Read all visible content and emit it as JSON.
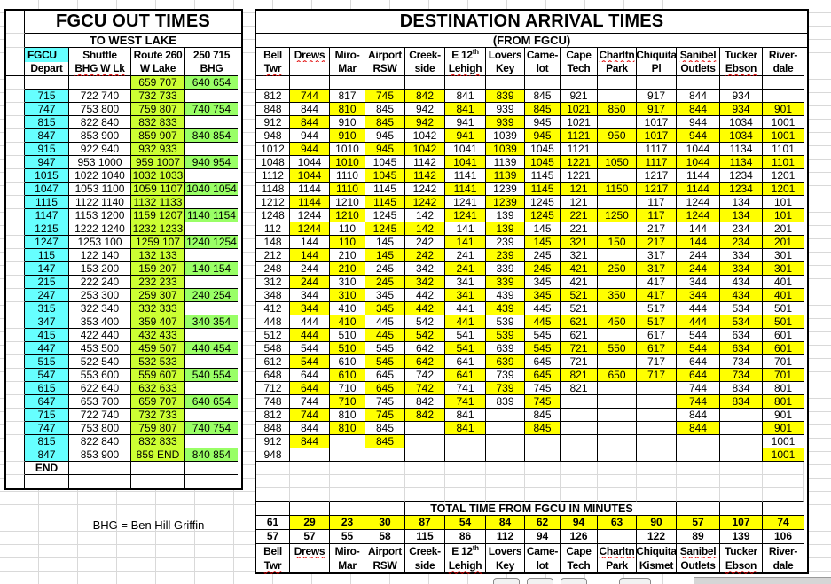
{
  "left_table": {
    "title": "FGCU OUT TIMES",
    "subtitle": "TO WEST LAKE",
    "headers": [
      {
        "line1": "FGCU",
        "line2": "Depart",
        "bg": "cyan"
      },
      {
        "line1": "Shuttle",
        "line2": "BHG W Lk",
        "sq2": true
      },
      {
        "line1": "Route 260",
        "line2": "W Lake"
      },
      {
        "line1": "250 715",
        "line2": "BHG"
      }
    ],
    "rows": [
      [
        "",
        "",
        "659 707",
        "640 654"
      ],
      [
        "715",
        "722 740",
        "732 733",
        ""
      ],
      [
        "747",
        "753 800",
        "759 807",
        "740 754"
      ],
      [
        "815",
        "822 840",
        "832 833",
        ""
      ],
      [
        "847",
        "853 900",
        "859 907",
        "840 854"
      ],
      [
        "915",
        "922 940",
        "932 933",
        ""
      ],
      [
        "947",
        "953 1000",
        "959 1007",
        "940 954"
      ],
      [
        "1015",
        "1022 1040",
        "1032 1033",
        ""
      ],
      [
        "1047",
        "1053 1100",
        "1059 1107",
        "1040 1054"
      ],
      [
        "1115",
        "1122 1140",
        "1132 1133",
        ""
      ],
      [
        "1147",
        "1153 1200",
        "1159 1207",
        "1140 1154"
      ],
      [
        "1215",
        "1222 1240",
        "1232 1233",
        ""
      ],
      [
        "1247",
        "1253 100",
        "1259 107",
        "1240 1254"
      ],
      [
        "115",
        "122 140",
        "132 133",
        ""
      ],
      [
        "147",
        "153 200",
        "159 207",
        "140 154"
      ],
      [
        "215",
        "222 240",
        "232 233",
        ""
      ],
      [
        "247",
        "253 300",
        "259 307",
        "240 254"
      ],
      [
        "315",
        "322 340",
        "332 333",
        ""
      ],
      [
        "347",
        "353 400",
        "359 407",
        "340 354"
      ],
      [
        "415",
        "422 440",
        "432 433",
        ""
      ],
      [
        "447",
        "453 500",
        "459 507",
        "440 454"
      ],
      [
        "515",
        "522 540",
        "532 533",
        ""
      ],
      [
        "547",
        "553 600",
        "559 607",
        "540 554"
      ],
      [
        "615",
        "622 640",
        "632 633",
        ""
      ],
      [
        "647",
        "653 700",
        "659 707",
        "640 654"
      ],
      [
        "715",
        "722 740",
        "732 733",
        ""
      ],
      [
        "747",
        "753 800",
        "759 807",
        "740 754"
      ],
      [
        "815",
        "822 840",
        "832 833",
        ""
      ],
      [
        "847",
        "853 900",
        "859 END",
        "840 854"
      ],
      [
        "END",
        "",
        "",
        ""
      ]
    ]
  },
  "right_table": {
    "title": "DESTINATION ARRIVAL TIMES",
    "subtitle": "(FROM FGCU)",
    "columns": [
      {
        "line1": "Bell",
        "line2": "Twr",
        "sq2": true
      },
      {
        "line1": "Drews",
        "line2": "",
        "sq1": true
      },
      {
        "line1": "Miro-",
        "line2": "Mar"
      },
      {
        "line1": "Airport",
        "line2": "RSW"
      },
      {
        "line1": "Creek-",
        "line2": "side"
      },
      {
        "line1": "E 12",
        "sup": "th",
        "line2": "Lehigh",
        "sq2": true
      },
      {
        "line1": "Lovers",
        "line2": "Key"
      },
      {
        "line1": "Came-",
        "line2": "lot"
      },
      {
        "line1": "Cape",
        "line2": "Tech"
      },
      {
        "line1": "Charltn",
        "line2": "Park",
        "sq1": true
      },
      {
        "line1": "Chiquita",
        "line2": "Pl"
      },
      {
        "line1": "Sanibel",
        "line2": "Outlets",
        "sq1": true
      },
      {
        "line1": "Tucker",
        "line2": "Ebson",
        "sq2": true
      },
      {
        "line1": "River-",
        "line2": "dale"
      }
    ],
    "rows": [
      [
        "812",
        "744",
        "817",
        "745",
        "842",
        "841",
        "839",
        "845",
        "921",
        "",
        "917",
        "844",
        "934",
        ""
      ],
      [
        "848",
        "844",
        "810",
        "845",
        "942",
        "841",
        "939",
        "845",
        "1021",
        "850",
        "917",
        "844",
        "934",
        "901"
      ],
      [
        "912",
        "844",
        "910",
        "845",
        "942",
        "941",
        "939",
        "945",
        "1021",
        "",
        "1017",
        "944",
        "1034",
        "1001"
      ],
      [
        "948",
        "944",
        "910",
        "945",
        "1042",
        "941",
        "1039",
        "945",
        "1121",
        "950",
        "1017",
        "944",
        "1034",
        "1001"
      ],
      [
        "1012",
        "944",
        "1010",
        "945",
        "1042",
        "1041",
        "1039",
        "1045",
        "1121",
        "",
        "1117",
        "1044",
        "1134",
        "1101"
      ],
      [
        "1048",
        "1044",
        "1010",
        "1045",
        "1142",
        "1041",
        "1139",
        "1045",
        "1221",
        "1050",
        "1117",
        "1044",
        "1134",
        "1101"
      ],
      [
        "1112",
        "1044",
        "1110",
        "1045",
        "1142",
        "1141",
        "1139",
        "1145",
        "1221",
        "",
        "1217",
        "1144",
        "1234",
        "1201"
      ],
      [
        "1148",
        "1144",
        "1110",
        "1145",
        "1242",
        "1141",
        "1239",
        "1145",
        "121",
        "1150",
        "1217",
        "1144",
        "1234",
        "1201"
      ],
      [
        "1212",
        "1144",
        "1210",
        "1145",
        "1242",
        "1241",
        "1239",
        "1245",
        "121",
        "",
        "117",
        "1244",
        "134",
        "101"
      ],
      [
        "1248",
        "1244",
        "1210",
        "1245",
        "142",
        "1241",
        "139",
        "1245",
        "221",
        "1250",
        "117",
        "1244",
        "134",
        "101"
      ],
      [
        "112",
        "1244",
        "110",
        "1245",
        "142",
        "141",
        "139",
        "145",
        "221",
        "",
        "217",
        "144",
        "234",
        "201"
      ],
      [
        "148",
        "144",
        "110",
        "145",
        "242",
        "141",
        "239",
        "145",
        "321",
        "150",
        "217",
        "144",
        "234",
        "201"
      ],
      [
        "212",
        "144",
        "210",
        "145",
        "242",
        "241",
        "239",
        "245",
        "321",
        "",
        "317",
        "244",
        "334",
        "301"
      ],
      [
        "248",
        "244",
        "210",
        "245",
        "342",
        "241",
        "339",
        "245",
        "421",
        "250",
        "317",
        "244",
        "334",
        "301"
      ],
      [
        "312",
        "244",
        "310",
        "245",
        "342",
        "341",
        "339",
        "345",
        "421",
        "",
        "417",
        "344",
        "434",
        "401"
      ],
      [
        "348",
        "344",
        "310",
        "345",
        "442",
        "341",
        "439",
        "345",
        "521",
        "350",
        "417",
        "344",
        "434",
        "401"
      ],
      [
        "412",
        "344",
        "410",
        "345",
        "442",
        "441",
        "439",
        "445",
        "521",
        "",
        "517",
        "444",
        "534",
        "501"
      ],
      [
        "448",
        "444",
        "410",
        "445",
        "542",
        "441",
        "539",
        "445",
        "621",
        "450",
        "517",
        "444",
        "534",
        "501"
      ],
      [
        "512",
        "444",
        "510",
        "445",
        "542",
        "541",
        "539",
        "545",
        "621",
        "",
        "617",
        "544",
        "634",
        "601"
      ],
      [
        "548",
        "544",
        "510",
        "545",
        "642",
        "541",
        "639",
        "545",
        "721",
        "550",
        "617",
        "544",
        "634",
        "601"
      ],
      [
        "612",
        "544",
        "610",
        "545",
        "642",
        "641",
        "639",
        "645",
        "721",
        "",
        "717",
        "644",
        "734",
        "701"
      ],
      [
        "648",
        "644",
        "610",
        "645",
        "742",
        "641",
        "739",
        "645",
        "821",
        "650",
        "717",
        "644",
        "734",
        "701"
      ],
      [
        "712",
        "644",
        "710",
        "645",
        "742",
        "741",
        "739",
        "745",
        "821",
        "",
        "",
        "744",
        "834",
        "801"
      ],
      [
        "748",
        "744",
        "710",
        "745",
        "842",
        "741",
        "839",
        "745",
        "",
        "",
        "",
        "744",
        "834",
        "801"
      ],
      [
        "812",
        "744",
        "810",
        "745",
        "842",
        "841",
        "",
        "845",
        "",
        "",
        "",
        "844",
        "",
        "901"
      ],
      [
        "848",
        "844",
        "810",
        "845",
        "",
        "841",
        "",
        "845",
        "",
        "",
        "",
        "844",
        "",
        "901"
      ],
      [
        "912",
        "844",
        "",
        "845",
        "",
        "",
        "",
        "",
        "",
        "",
        "",
        "",
        "",
        "1001"
      ],
      [
        "948",
        "",
        "",
        "",
        "",
        "",
        "",
        "",
        "",
        "",
        "",
        "",
        "",
        "1001"
      ]
    ],
    "highlight_pattern": {
      "odd_rows": [
        1,
        3,
        4,
        6
      ],
      "even_rows": [
        2,
        5,
        7,
        8,
        9,
        10,
        11,
        12,
        13
      ]
    }
  },
  "totals": {
    "title": "TOTAL TIME FROM FGCU IN MINUTES",
    "row1": [
      "61",
      "29",
      "23",
      "30",
      "87",
      "54",
      "84",
      "62",
      "94",
      "63",
      "90",
      "57",
      "107",
      "74"
    ],
    "row2": [
      "57",
      "57",
      "55",
      "58",
      "115",
      "86",
      "112",
      "94",
      "126",
      "",
      "122",
      "89",
      "139",
      "106"
    ],
    "columns": [
      {
        "line1": "Bell",
        "line2": "Twr",
        "sq2": true
      },
      {
        "line1": "Drews",
        "line2": "",
        "sq1": true
      },
      {
        "line1": "Miro-",
        "line2": "Mar"
      },
      {
        "line1": "Airport",
        "line2": "RSW"
      },
      {
        "line1": "Creek-",
        "line2": "side"
      },
      {
        "line1": "E 12",
        "sup": "th",
        "line2": "Lehigh",
        "sq2": true
      },
      {
        "line1": "Lovers",
        "line2": "Key"
      },
      {
        "line1": "Came-",
        "line2": "lot"
      },
      {
        "line1": "Cape",
        "line2": "Tech"
      },
      {
        "line1": "Charltn",
        "line2": "Park",
        "sq1": true
      },
      {
        "line1": "Chiquita",
        "line2": "Kismet"
      },
      {
        "line1": "Sanibel",
        "line2": "Outlets",
        "sq1": true
      },
      {
        "line1": "Tucker",
        "line2": "Ebson",
        "sq2": true
      },
      {
        "line1": "River-",
        "line2": "dale"
      }
    ]
  },
  "footnote": "BHG = Ben Hill Griffin",
  "colors": {
    "depart_bg": "#66ffff",
    "route_bg": "#ccff33",
    "bhg_bg": "#99ff66",
    "highlight": "#ffff00",
    "gridline": "#d9d9d9",
    "squiggle": "#e00000"
  }
}
